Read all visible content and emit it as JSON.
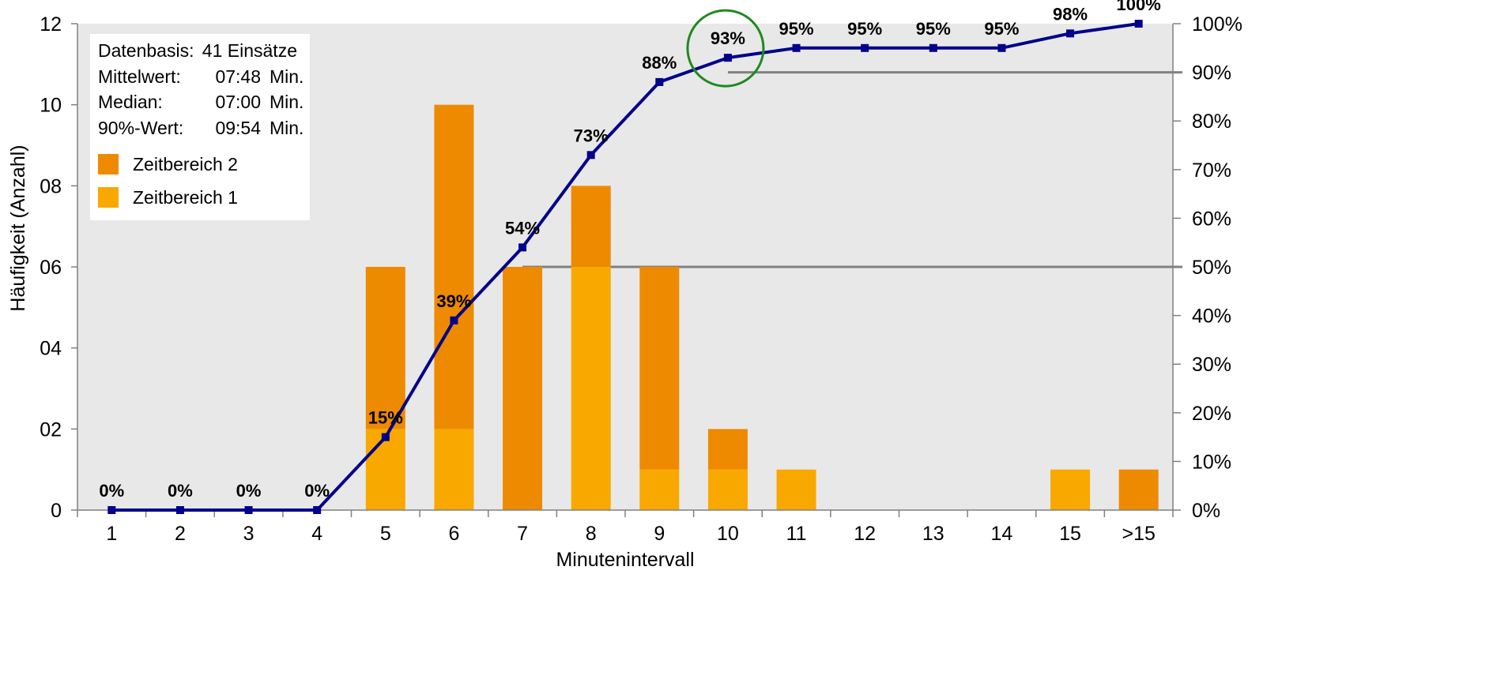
{
  "chart_data": {
    "type": "bar",
    "xlabel": "Minutenintervall",
    "ylabel": "Häufigkeit  (Anzahl)",
    "categories": [
      "1",
      "2",
      "3",
      "4",
      "5",
      "6",
      "7",
      "8",
      "9",
      "10",
      "11",
      "12",
      "13",
      "14",
      "15",
      ">15"
    ],
    "ylim": [
      0,
      12
    ],
    "y_ticks": [
      "0",
      "02",
      "04",
      "06",
      "08",
      "10",
      "12"
    ],
    "y2lim": [
      0,
      100
    ],
    "y2_ticks": [
      "0%",
      "10%",
      "20%",
      "30%",
      "40%",
      "50%",
      "60%",
      "70%",
      "80%",
      "90%",
      "100%"
    ],
    "series": [
      {
        "name": "Zeitbereich 1",
        "type": "bar",
        "stacked": true,
        "color": "#F9A800",
        "values": [
          0,
          0,
          0,
          0,
          2,
          2,
          0,
          6,
          1,
          1,
          1,
          0,
          0,
          0,
          1,
          0
        ]
      },
      {
        "name": "Zeitbereich 2",
        "type": "bar",
        "stacked": true,
        "color": "#EE8A00",
        "values": [
          0,
          0,
          0,
          0,
          4,
          8,
          6,
          2,
          5,
          1,
          0,
          0,
          0,
          0,
          0,
          1
        ]
      },
      {
        "type": "line",
        "axis": "secondary",
        "color": "#00008B",
        "values": [
          0,
          0,
          0,
          0,
          15,
          39,
          54,
          73,
          88,
          93,
          95,
          95,
          95,
          95,
          98,
          100
        ],
        "labels": [
          "0%",
          "0%",
          "0%",
          "0%",
          "15%",
          "39%",
          "54%",
          "73%",
          "88%",
          "93%",
          "95%",
          "95%",
          "95%",
          "95%",
          "98%",
          "100%"
        ]
      }
    ],
    "reference_lines": [
      {
        "value": 50,
        "axis": "secondary",
        "from_category": "7",
        "color": "#808080"
      },
      {
        "value": 90,
        "axis": "secondary",
        "from_category": "10",
        "color": "#808080"
      }
    ],
    "highlight": {
      "category": "10",
      "shape": "circle",
      "color": "#1E8A1E"
    },
    "plot_background": "#E8E8E8",
    "legend_position": "top-left"
  },
  "info_box": {
    "rows": [
      {
        "label": "Datenbasis:",
        "value": "41 Einsätze",
        "unit": ""
      },
      {
        "label": "Mittelwert:",
        "value": "07:48",
        "unit": "Min."
      },
      {
        "label": "Median:",
        "value": "07:00",
        "unit": "Min."
      },
      {
        "label": "90%-Wert:",
        "value": "09:54",
        "unit": "Min."
      }
    ],
    "legend": [
      {
        "label": "Zeitbereich 2",
        "color": "#EE8A00"
      },
      {
        "label": "Zeitbereich 1",
        "color": "#F9A800"
      }
    ]
  }
}
